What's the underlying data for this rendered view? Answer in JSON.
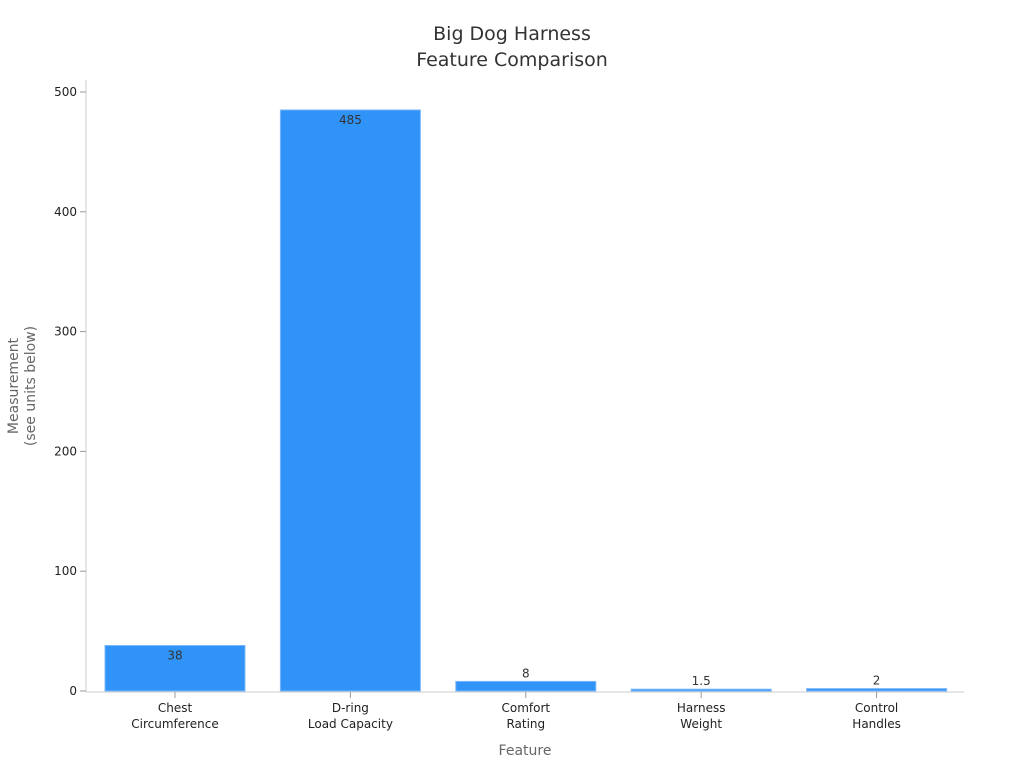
{
  "chart_data": {
    "type": "bar",
    "title": [
      "Big Dog Harness",
      "Feature Comparison"
    ],
    "xlabel": "Feature",
    "ylabel": [
      "Measurement",
      "(see units below)"
    ],
    "categories": [
      [
        "Chest",
        "Circumference"
      ],
      [
        "D-ring",
        "Load Capacity"
      ],
      [
        "Comfort",
        "Rating"
      ],
      [
        "Harness",
        "Weight"
      ],
      [
        "Control",
        "Handles"
      ]
    ],
    "values": [
      38,
      485,
      8,
      1.5,
      2
    ],
    "data_labels": [
      "38",
      "485",
      "8",
      "1.5",
      "2"
    ],
    "ylim": [
      0,
      510
    ],
    "yticks": [
      0,
      100,
      200,
      300,
      400,
      500
    ],
    "grid": false,
    "bar_color": "#3093f8"
  }
}
